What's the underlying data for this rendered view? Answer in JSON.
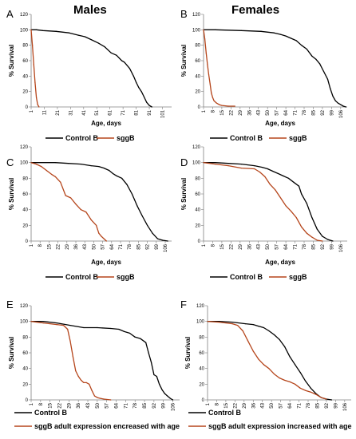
{
  "figure": {
    "column_titles": [
      "Males",
      "Females"
    ]
  },
  "chart_data": [
    {
      "panel": "A",
      "type": "line",
      "xlabel": "Age, days",
      "ylabel": "% Survival",
      "xticks": [
        "1",
        "11",
        "21",
        "31",
        "41",
        "51",
        "61",
        "71",
        "81",
        "91",
        "101"
      ],
      "xlim": [
        1,
        108
      ],
      "ylim": [
        0,
        120
      ],
      "yticks": [
        0,
        20,
        40,
        60,
        80,
        100,
        120
      ],
      "series": [
        {
          "name": "Control B",
          "color": "#000000",
          "x": [
            1,
            5,
            10,
            20,
            30,
            37,
            42,
            47,
            52,
            57,
            62,
            66,
            70,
            72,
            76,
            79,
            81,
            83,
            85,
            87,
            89,
            91,
            93
          ],
          "y": [
            100,
            100,
            99,
            98,
            96,
            93,
            91,
            87,
            83,
            78,
            70,
            67,
            60,
            58,
            50,
            40,
            32,
            25,
            20,
            13,
            6,
            2,
            0
          ]
        },
        {
          "name": "sggB",
          "color": "#b5451b",
          "x": [
            1,
            2,
            3,
            4,
            5,
            6,
            7
          ],
          "y": [
            100,
            80,
            55,
            32,
            12,
            3,
            0
          ]
        }
      ]
    },
    {
      "panel": "B",
      "type": "line",
      "xlabel": "Age, days",
      "ylabel": "% Survival",
      "xticks": [
        "1",
        "8",
        "15",
        "22",
        "29",
        "36",
        "43",
        "50",
        "57",
        "64",
        "71",
        "78",
        "85",
        "92",
        "99",
        "106"
      ],
      "xlim": [
        1,
        111
      ],
      "ylim": [
        0,
        120
      ],
      "yticks": [
        0,
        20,
        40,
        60,
        80,
        100,
        120
      ],
      "series": [
        {
          "name": "Control B",
          "color": "#000000",
          "x": [
            1,
            10,
            30,
            45,
            55,
            60,
            64,
            68,
            72,
            76,
            80,
            84,
            87,
            90,
            93,
            96,
            98,
            100,
            102,
            104,
            106,
            108,
            110
          ],
          "y": [
            100,
            100,
            99,
            98,
            96,
            94,
            92,
            89,
            86,
            80,
            75,
            66,
            62,
            56,
            46,
            36,
            24,
            14,
            8,
            5,
            3,
            1,
            0
          ]
        },
        {
          "name": "sggB",
          "color": "#b5451b",
          "x": [
            1,
            2,
            3,
            4,
            5,
            6,
            7,
            8,
            9,
            11,
            13,
            15,
            20,
            25
          ],
          "y": [
            100,
            88,
            70,
            55,
            42,
            30,
            18,
            12,
            8,
            5,
            3,
            2,
            1,
            1
          ]
        }
      ]
    },
    {
      "panel": "C",
      "type": "line",
      "xlabel": "Age, days",
      "ylabel": "% Survival",
      "xticks": [
        "1",
        "8",
        "15",
        "22",
        "29",
        "36",
        "43",
        "50",
        "57",
        "64",
        "71",
        "78",
        "85",
        "92",
        "99",
        "106"
      ],
      "xlim": [
        1,
        111
      ],
      "ylim": [
        0,
        120
      ],
      "yticks": [
        0,
        20,
        40,
        60,
        80,
        100,
        120
      ],
      "series": [
        {
          "name": "Control B",
          "color": "#000000",
          "x": [
            1,
            20,
            30,
            40,
            48,
            54,
            58,
            62,
            65,
            68,
            72,
            76,
            80,
            84,
            88,
            92,
            96,
            100,
            104,
            108
          ],
          "y": [
            100,
            100,
            99,
            98,
            96,
            95,
            93,
            90,
            86,
            83,
            80,
            72,
            60,
            45,
            32,
            20,
            10,
            3,
            1,
            0
          ]
        },
        {
          "name": "sggB",
          "color": "#b5451b",
          "x": [
            1,
            5,
            9,
            13,
            17,
            20,
            24,
            28,
            32,
            36,
            40,
            44,
            48,
            52,
            54,
            56,
            58,
            60
          ],
          "y": [
            100,
            98,
            95,
            90,
            85,
            82,
            75,
            58,
            55,
            47,
            40,
            37,
            27,
            20,
            10,
            6,
            3,
            0
          ]
        }
      ]
    },
    {
      "panel": "D",
      "type": "line",
      "xlabel": "Age, days",
      "ylabel": "% Survival",
      "xticks": [
        "1",
        "8",
        "15",
        "22",
        "29",
        "36",
        "43",
        "50",
        "57",
        "64",
        "71",
        "78",
        "85",
        "92",
        "99",
        "106"
      ],
      "xlim": [
        1,
        111
      ],
      "ylim": [
        0,
        120
      ],
      "yticks": [
        0,
        20,
        40,
        60,
        80,
        100,
        120
      ],
      "series": [
        {
          "name": "Control B",
          "color": "#000000",
          "x": [
            1,
            10,
            20,
            30,
            40,
            46,
            50,
            54,
            58,
            62,
            66,
            70,
            74,
            76,
            80,
            84,
            88,
            92,
            96,
            100
          ],
          "y": [
            100,
            100,
            99,
            98,
            96,
            94,
            92,
            89,
            86,
            83,
            80,
            75,
            70,
            60,
            48,
            30,
            15,
            6,
            2,
            0
          ]
        },
        {
          "name": "sggB",
          "color": "#b5451b",
          "x": [
            1,
            10,
            20,
            30,
            40,
            44,
            48,
            52,
            56,
            60,
            64,
            68,
            72,
            76,
            80,
            84,
            88,
            92
          ],
          "y": [
            100,
            98,
            96,
            93,
            92,
            88,
            82,
            72,
            65,
            55,
            45,
            38,
            30,
            18,
            10,
            5,
            1,
            0
          ]
        }
      ]
    },
    {
      "panel": "E",
      "type": "line",
      "xlabel": "",
      "ylabel": "% Survival",
      "xticks": [
        "1",
        "8",
        "15",
        "22",
        "29",
        "36",
        "43",
        "50",
        "57",
        "64",
        "71",
        "78",
        "85",
        "92",
        "99",
        "106"
      ],
      "xlim": [
        1,
        111
      ],
      "ylim": [
        0,
        120
      ],
      "yticks": [
        0,
        20,
        40,
        60,
        80,
        100,
        120
      ],
      "series": [
        {
          "name": "Control B",
          "color": "#000000",
          "x": [
            1,
            10,
            20,
            30,
            40,
            50,
            60,
            66,
            70,
            74,
            78,
            82,
            86,
            88,
            90,
            92,
            94,
            96,
            98,
            100,
            102,
            104,
            106
          ],
          "y": [
            100,
            100,
            98,
            95,
            92,
            92,
            91,
            90,
            87,
            85,
            80,
            78,
            73,
            60,
            48,
            32,
            30,
            20,
            13,
            8,
            5,
            2,
            0
          ]
        },
        {
          "name": "sggB adult expression encreased with age",
          "color": "#b5451b",
          "x": [
            1,
            10,
            20,
            25,
            28,
            30,
            32,
            34,
            36,
            38,
            40,
            42,
            44,
            46,
            48,
            50,
            52,
            55,
            60
          ],
          "y": [
            100,
            98,
            96,
            95,
            90,
            75,
            55,
            37,
            30,
            25,
            22,
            22,
            20,
            12,
            5,
            3,
            2,
            1,
            0
          ]
        }
      ]
    },
    {
      "panel": "F",
      "type": "line",
      "xlabel": "",
      "ylabel": "% Survival",
      "xticks": [
        "1",
        "8",
        "15",
        "22",
        "29",
        "36",
        "43",
        "50",
        "57",
        "64",
        "71",
        "78",
        "85",
        "92",
        "99",
        "106"
      ],
      "xlim": [
        1,
        111
      ],
      "ylim": [
        0,
        120
      ],
      "yticks": [
        0,
        20,
        40,
        60,
        80,
        100,
        120
      ],
      "series": [
        {
          "name": "Control B",
          "color": "#000000",
          "x": [
            1,
            10,
            20,
            30,
            36,
            40,
            44,
            48,
            52,
            56,
            60,
            64,
            68,
            72,
            76,
            80,
            84,
            88,
            92,
            96
          ],
          "y": [
            100,
            100,
            99,
            97,
            96,
            94,
            92,
            88,
            83,
            77,
            68,
            55,
            45,
            35,
            24,
            15,
            8,
            3,
            1,
            0
          ]
        },
        {
          "name": "sggB adult expression increased with age",
          "color": "#b5451b",
          "x": [
            1,
            10,
            20,
            24,
            28,
            32,
            36,
            40,
            44,
            48,
            52,
            56,
            60,
            64,
            68,
            72,
            76,
            80,
            84,
            88,
            92
          ],
          "y": [
            100,
            99,
            97,
            95,
            88,
            75,
            62,
            52,
            45,
            40,
            33,
            28,
            25,
            23,
            20,
            15,
            12,
            10,
            7,
            3,
            1
          ]
        }
      ]
    }
  ]
}
